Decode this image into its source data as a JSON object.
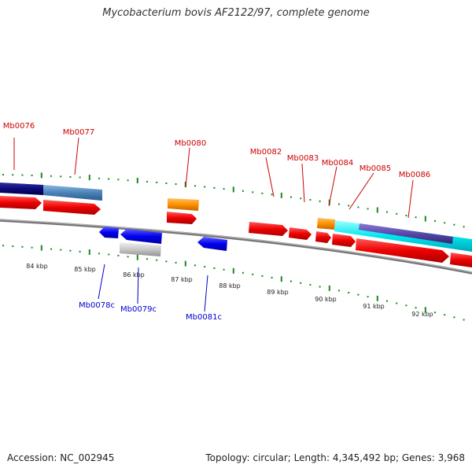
{
  "title": "Mycobacterium bovis AF2122/97, complete genome",
  "footer": {
    "accession": "Accession: NC_002945",
    "summary": "Topology: circular; Length: 4,345,492 bp; Genes: 3,968"
  },
  "colors": {
    "forward_label": "#cc0000",
    "reverse_label": "#0000cc",
    "tick": "#1a8c1a",
    "backbone": "#888888"
  },
  "forward_genes": [
    "Mb0076",
    "Mb0077",
    "Mb0080",
    "Mb0082",
    "Mb0083",
    "Mb0084",
    "Mb0085",
    "Mb0086"
  ],
  "reverse_genes": [
    "Mb0078c",
    "Mb0079c",
    "Mb0081c"
  ],
  "kbp_labels": [
    "84 kbp",
    "85 kbp",
    "86 kbp",
    "87 kbp",
    "88 kbp",
    "89 kbp",
    "90 kbp",
    "91 kbp",
    "92 kbp"
  ]
}
